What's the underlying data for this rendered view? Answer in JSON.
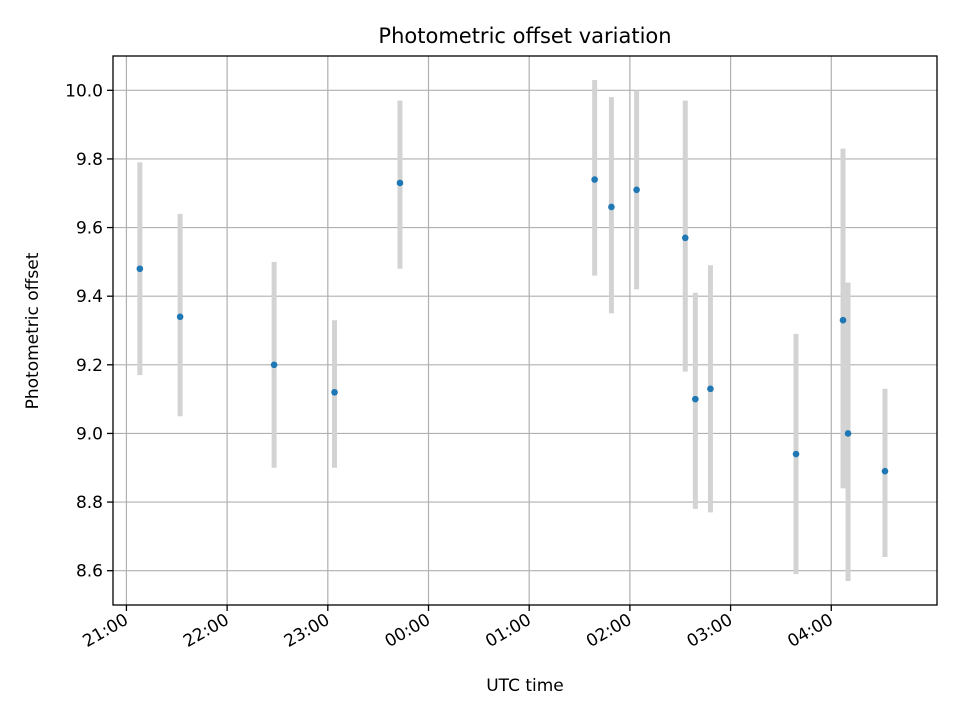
{
  "chart_data": {
    "type": "scatter",
    "title": "Photometric offset variation",
    "xlabel": "UTC time",
    "ylabel": "Photometric offset",
    "x_axis": "time",
    "x_ticks": [
      "21:00",
      "22:00",
      "23:00",
      "00:00",
      "01:00",
      "02:00",
      "03:00",
      "04:00"
    ],
    "xlim": [
      "20:52",
      "05:03"
    ],
    "ylim": [
      8.5,
      10.1
    ],
    "y_ticks": [
      8.6,
      8.8,
      9.0,
      9.2,
      9.4,
      9.6,
      9.8,
      10.0
    ],
    "grid": true,
    "legend": "none",
    "marker_color": "#1f77b4",
    "errorbar_color": "#d3d3d3",
    "points": [
      {
        "x": "21:08",
        "y": 9.48,
        "yerr_low": 9.17,
        "yerr_high": 9.79
      },
      {
        "x": "21:32",
        "y": 9.34,
        "yerr_low": 9.05,
        "yerr_high": 9.64
      },
      {
        "x": "22:28",
        "y": 9.2,
        "yerr_low": 8.9,
        "yerr_high": 9.5
      },
      {
        "x": "23:04",
        "y": 9.12,
        "yerr_low": 8.9,
        "yerr_high": 9.33
      },
      {
        "x": "23:43",
        "y": 9.73,
        "yerr_low": 9.48,
        "yerr_high": 9.97
      },
      {
        "x": "01:39",
        "y": 9.74,
        "yerr_low": 9.46,
        "yerr_high": 10.03
      },
      {
        "x": "01:49",
        "y": 9.66,
        "yerr_low": 9.35,
        "yerr_high": 9.98
      },
      {
        "x": "02:04",
        "y": 9.71,
        "yerr_low": 9.42,
        "yerr_high": 10.0
      },
      {
        "x": "02:33",
        "y": 9.57,
        "yerr_low": 9.18,
        "yerr_high": 9.97
      },
      {
        "x": "02:39",
        "y": 9.1,
        "yerr_low": 8.78,
        "yerr_high": 9.41
      },
      {
        "x": "02:48",
        "y": 9.13,
        "yerr_low": 8.77,
        "yerr_high": 9.49
      },
      {
        "x": "03:39",
        "y": 8.94,
        "yerr_low": 8.59,
        "yerr_high": 9.29
      },
      {
        "x": "04:07",
        "y": 9.33,
        "yerr_low": 8.84,
        "yerr_high": 9.83
      },
      {
        "x": "04:10",
        "y": 9.0,
        "yerr_low": 8.57,
        "yerr_high": 9.44
      },
      {
        "x": "04:32",
        "y": 8.89,
        "yerr_low": 8.64,
        "yerr_high": 9.13
      }
    ]
  }
}
